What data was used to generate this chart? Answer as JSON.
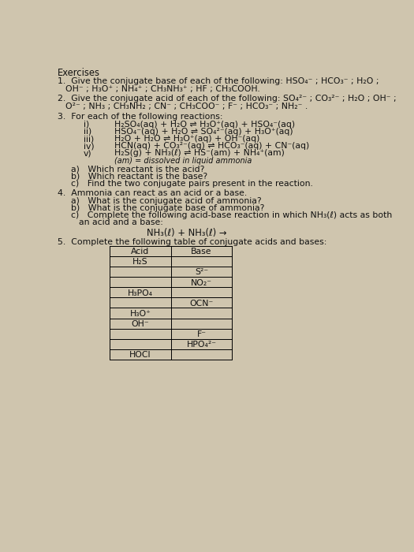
{
  "bg_color": "#cfc5ae",
  "text_color": "#111111",
  "font_size": 7.8,
  "table_acid": [
    "H₂S",
    "",
    "",
    "H₃PO₄",
    "",
    "H₃O⁺",
    "OH⁻",
    "",
    "",
    "HOCl"
  ],
  "table_base": [
    "",
    "S²⁻",
    "NO₂⁻",
    "",
    "OCN⁻",
    "",
    "",
    "F⁻",
    "HPO₄²⁻",
    ""
  ]
}
